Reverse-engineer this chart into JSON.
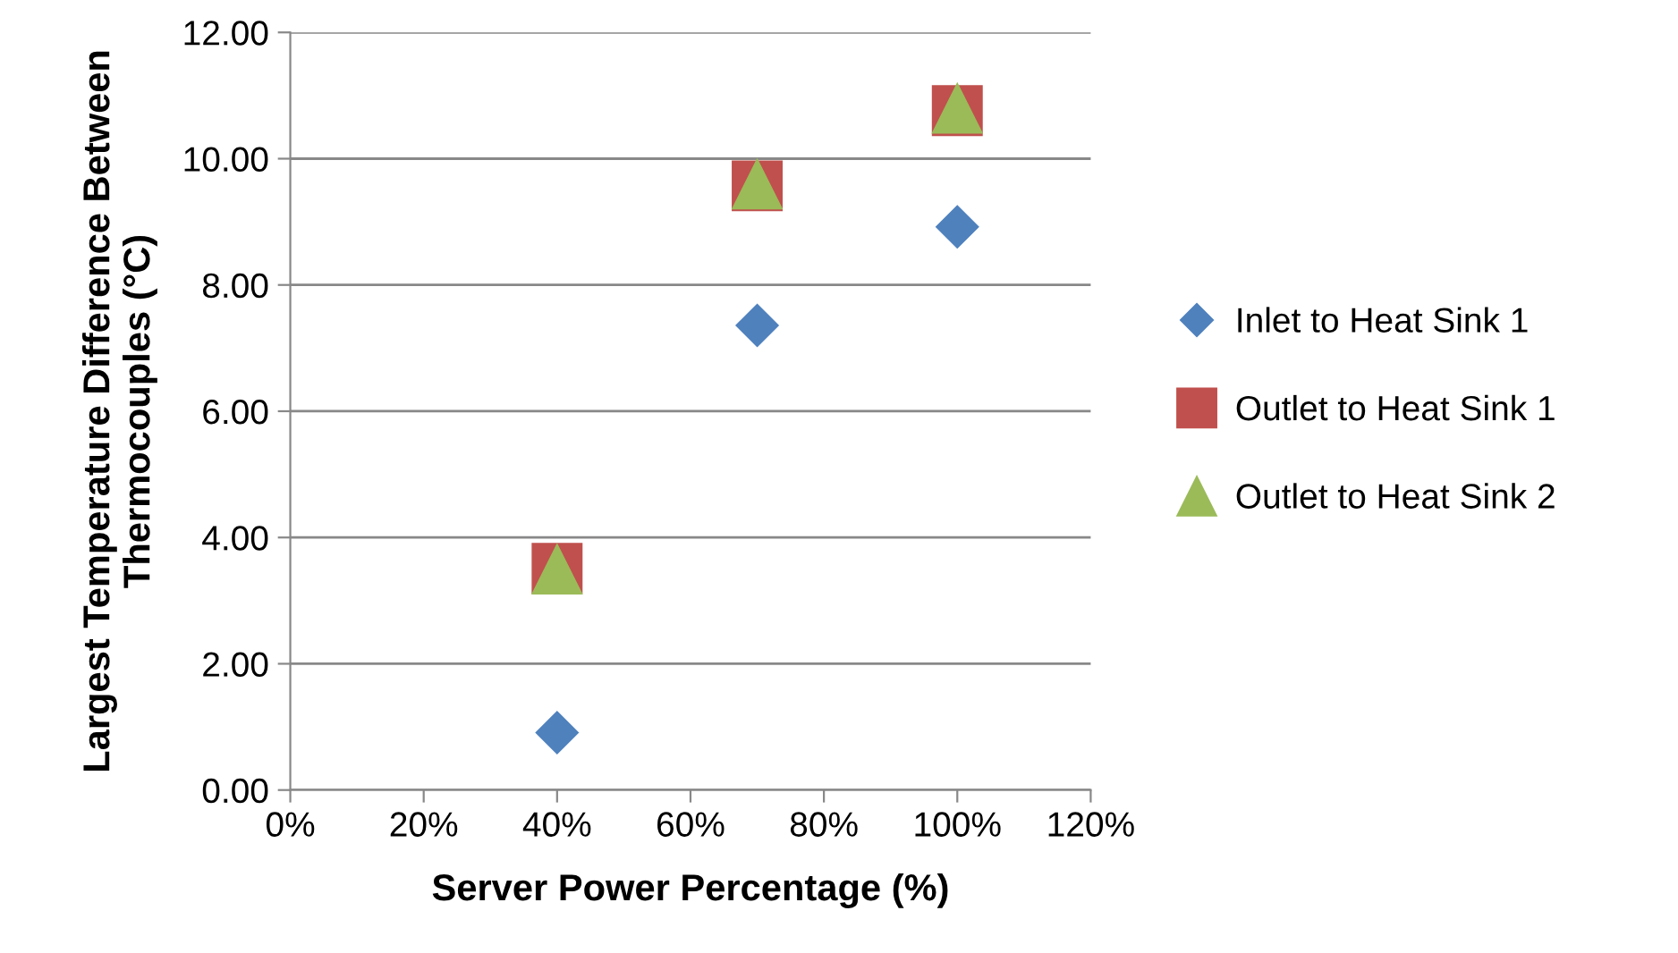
{
  "chart_data": {
    "type": "scatter",
    "xlabel": "Server Power Percentage (%)",
    "ylabel": "Largest Temperature Difference Between\nThermocouples (°C)",
    "x": [
      40,
      70,
      100
    ],
    "series": [
      {
        "name": "Inlet to Heat Sink 1",
        "color": "#4f81bd",
        "marker": "diamond",
        "values": [
          0.91,
          7.36,
          8.92
        ]
      },
      {
        "name": "Outlet to Heat Sink 1",
        "color": "#c0504d",
        "marker": "square",
        "values": [
          3.51,
          9.57,
          10.76
        ]
      },
      {
        "name": "Outlet to Heat Sink 2",
        "color": "#9bbb59",
        "marker": "triangle",
        "values": [
          3.5,
          9.6,
          10.8
        ]
      }
    ],
    "xlim": [
      0,
      120
    ],
    "xticks": [
      {
        "value": 0,
        "label": "0%"
      },
      {
        "value": 20,
        "label": "20%"
      },
      {
        "value": 40,
        "label": "40%"
      },
      {
        "value": 60,
        "label": "60%"
      },
      {
        "value": 80,
        "label": "80%"
      },
      {
        "value": 100,
        "label": "100%"
      },
      {
        "value": 120,
        "label": "120%"
      }
    ],
    "ylim": [
      0,
      12
    ],
    "yticks": [
      {
        "value": 0,
        "label": "0.00"
      },
      {
        "value": 2,
        "label": "2.00"
      },
      {
        "value": 4,
        "label": "4.00"
      },
      {
        "value": 6,
        "label": "6.00"
      },
      {
        "value": 8,
        "label": "8.00"
      },
      {
        "value": 10,
        "label": "10.00"
      },
      {
        "value": 12,
        "label": "12.00"
      }
    ],
    "grid": "y",
    "legend": "right"
  }
}
